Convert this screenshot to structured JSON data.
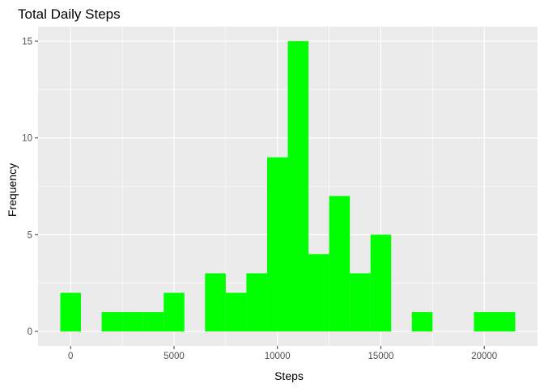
{
  "chart_data": {
    "type": "bar",
    "title": "Total Daily Steps",
    "xlabel": "Steps",
    "ylabel": "Frequency",
    "bin_width": 1000,
    "bins": [
      {
        "x": 0,
        "count": 2
      },
      {
        "x": 2000,
        "count": 1
      },
      {
        "x": 3000,
        "count": 1
      },
      {
        "x": 4000,
        "count": 1
      },
      {
        "x": 5000,
        "count": 2
      },
      {
        "x": 7000,
        "count": 3
      },
      {
        "x": 8000,
        "count": 2
      },
      {
        "x": 9000,
        "count": 3
      },
      {
        "x": 10000,
        "count": 9
      },
      {
        "x": 11000,
        "count": 15
      },
      {
        "x": 12000,
        "count": 4
      },
      {
        "x": 13000,
        "count": 7
      },
      {
        "x": 14000,
        "count": 3
      },
      {
        "x": 15000,
        "count": 5
      },
      {
        "x": 17000,
        "count": 1
      },
      {
        "x": 20000,
        "count": 1
      },
      {
        "x": 21000,
        "count": 1
      }
    ],
    "xlim": [
      -1575,
      22575
    ],
    "ylim": [
      -0.75,
      15.75
    ],
    "x_ticks": [
      0,
      5000,
      10000,
      15000,
      20000
    ],
    "y_ticks": [
      0,
      5,
      10,
      15
    ],
    "bar_color": "#00ff00",
    "panel_color": "#ebebeb",
    "grid_color": "#ffffff",
    "grid": true
  }
}
